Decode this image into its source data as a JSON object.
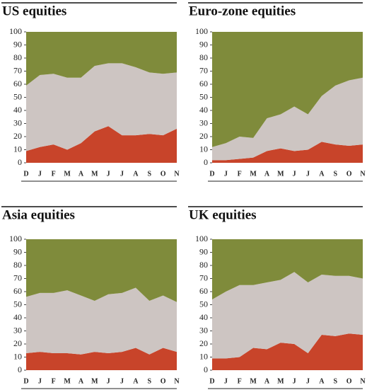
{
  "chart_data": [
    {
      "type": "stacked_area",
      "title": "US equities",
      "categories": [
        "D",
        "J",
        "F",
        "M",
        "A",
        "M",
        "J",
        "J",
        "A",
        "S",
        "O",
        "N"
      ],
      "series": [
        {
          "color": "#c8442a",
          "values": [
            9,
            12,
            14,
            10,
            15,
            24,
            28,
            21,
            21,
            22,
            21,
            26
          ]
        },
        {
          "color": "#cdc5c2",
          "values": [
            50,
            55,
            54,
            55,
            50,
            50,
            48,
            55,
            52,
            47,
            47,
            43
          ]
        },
        {
          "color": "#7f8b3b",
          "values": [
            41,
            33,
            32,
            35,
            35,
            26,
            24,
            24,
            27,
            31,
            32,
            31
          ]
        }
      ],
      "ylim": [
        0,
        100
      ],
      "yticks": [
        0,
        10,
        20,
        30,
        40,
        50,
        60,
        70,
        80,
        90,
        100
      ]
    },
    {
      "type": "stacked_area",
      "title": "Euro-zone equities",
      "categories": [
        "D",
        "J",
        "F",
        "M",
        "A",
        "M",
        "J",
        "J",
        "A",
        "S",
        "O",
        "N"
      ],
      "series": [
        {
          "color": "#c8442a",
          "values": [
            2,
            2,
            3,
            4,
            9,
            11,
            9,
            10,
            16,
            14,
            13,
            14
          ]
        },
        {
          "color": "#cdc5c2",
          "values": [
            10,
            13,
            17,
            15,
            25,
            26,
            34,
            27,
            35,
            45,
            50,
            51
          ]
        },
        {
          "color": "#7f8b3b",
          "values": [
            88,
            85,
            80,
            81,
            66,
            63,
            57,
            63,
            49,
            41,
            37,
            35
          ]
        }
      ],
      "ylim": [
        0,
        100
      ],
      "yticks": [
        0,
        10,
        20,
        30,
        40,
        50,
        60,
        70,
        80,
        90,
        100
      ]
    },
    {
      "type": "stacked_area",
      "title": "Asia equities",
      "categories": [
        "D",
        "J",
        "F",
        "M",
        "A",
        "M",
        "J",
        "J",
        "A",
        "S",
        "O",
        "N"
      ],
      "series": [
        {
          "color": "#c8442a",
          "values": [
            13,
            14,
            13,
            13,
            12,
            14,
            13,
            14,
            17,
            12,
            17,
            14
          ]
        },
        {
          "color": "#cdc5c2",
          "values": [
            43,
            45,
            46,
            48,
            45,
            39,
            45,
            45,
            46,
            41,
            40,
            38
          ]
        },
        {
          "color": "#7f8b3b",
          "values": [
            44,
            41,
            41,
            39,
            43,
            47,
            42,
            41,
            37,
            47,
            43,
            48
          ]
        }
      ],
      "ylim": [
        0,
        100
      ],
      "yticks": [
        0,
        10,
        20,
        30,
        40,
        50,
        60,
        70,
        80,
        90,
        100
      ]
    },
    {
      "type": "stacked_area",
      "title": "UK equities",
      "categories": [
        "D",
        "J",
        "F",
        "M",
        "A",
        "M",
        "J",
        "J",
        "A",
        "S",
        "O",
        "N"
      ],
      "series": [
        {
          "color": "#c8442a",
          "values": [
            9,
            9,
            10,
            17,
            16,
            21,
            20,
            13,
            27,
            26,
            28,
            27
          ]
        },
        {
          "color": "#cdc5c2",
          "values": [
            45,
            51,
            55,
            48,
            51,
            48,
            55,
            54,
            46,
            46,
            44,
            43
          ]
        },
        {
          "color": "#7f8b3b",
          "values": [
            46,
            40,
            35,
            35,
            33,
            31,
            25,
            33,
            27,
            28,
            28,
            30
          ]
        }
      ],
      "ylim": [
        0,
        100
      ],
      "yticks": [
        0,
        10,
        20,
        30,
        40,
        50,
        60,
        70,
        80,
        90,
        100
      ]
    }
  ]
}
